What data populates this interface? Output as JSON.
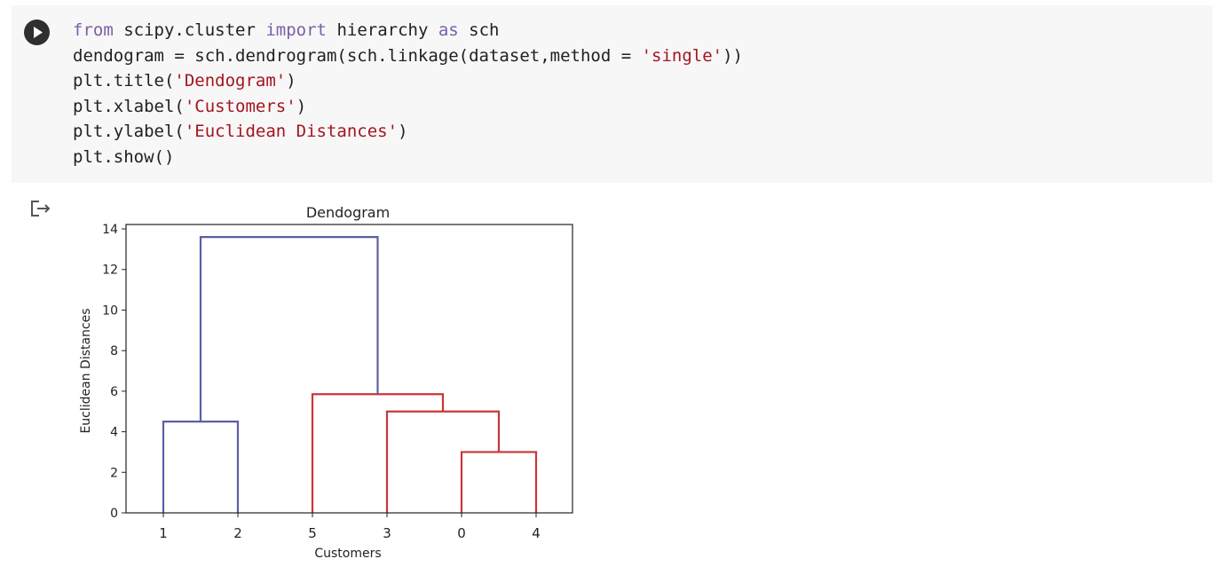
{
  "cell": {
    "run_icon": "play-icon",
    "output_icon": "output-redirect-icon",
    "code_lines": [
      [
        {
          "t": "from",
          "c": "kw"
        },
        {
          "t": " scipy.cluster ",
          "c": ""
        },
        {
          "t": "import",
          "c": "kw"
        },
        {
          "t": " hierarchy ",
          "c": ""
        },
        {
          "t": "as",
          "c": "kw"
        },
        {
          "t": " sch",
          "c": ""
        }
      ],
      [
        {
          "t": "dendogram = sch.dendrogram(sch.linkage(dataset,method = ",
          "c": ""
        },
        {
          "t": "'single'",
          "c": "str"
        },
        {
          "t": "))",
          "c": ""
        }
      ],
      [
        {
          "t": "plt.title(",
          "c": ""
        },
        {
          "t": "'Dendogram'",
          "c": "str"
        },
        {
          "t": ")",
          "c": ""
        }
      ],
      [
        {
          "t": "plt.xlabel(",
          "c": ""
        },
        {
          "t": "'Customers'",
          "c": "str"
        },
        {
          "t": ")",
          "c": ""
        }
      ],
      [
        {
          "t": "plt.ylabel(",
          "c": ""
        },
        {
          "t": "'Euclidean Distances'",
          "c": "str"
        },
        {
          "t": ")",
          "c": ""
        }
      ],
      [
        {
          "t": "plt.show()",
          "c": ""
        }
      ]
    ]
  },
  "chart_data": {
    "type": "dendrogram",
    "title": "Dendogram",
    "xlabel": "Customers",
    "ylabel": "Euclidean Distances",
    "ylim": [
      0,
      14
    ],
    "yticks": [
      0,
      2,
      4,
      6,
      8,
      10,
      12,
      14
    ],
    "leaf_labels": [
      "1",
      "2",
      "5",
      "3",
      "0",
      "4"
    ],
    "colors": {
      "cluster_a": "#5c5fa3",
      "cluster_b": "#c8373a"
    },
    "links": [
      {
        "left": 0,
        "right": 1,
        "left_h": 0,
        "right_h": 0,
        "h": 4.5,
        "color": "#5c5fa3"
      },
      {
        "left": 4,
        "right": 5,
        "left_h": 0,
        "right_h": 0,
        "h": 3.0,
        "color": "#c8373a"
      },
      {
        "left": 3,
        "right": 4.5,
        "left_h": 0,
        "right_h": 3.0,
        "h": 5.0,
        "color": "#c8373a"
      },
      {
        "left": 2,
        "right": 3.75,
        "left_h": 0,
        "right_h": 5.0,
        "h": 5.85,
        "color": "#c8373a"
      },
      {
        "left": 0.5,
        "right": 2.875,
        "left_h": 4.5,
        "right_h": 5.85,
        "h": 13.6,
        "color": "#5c5fa3"
      }
    ]
  }
}
